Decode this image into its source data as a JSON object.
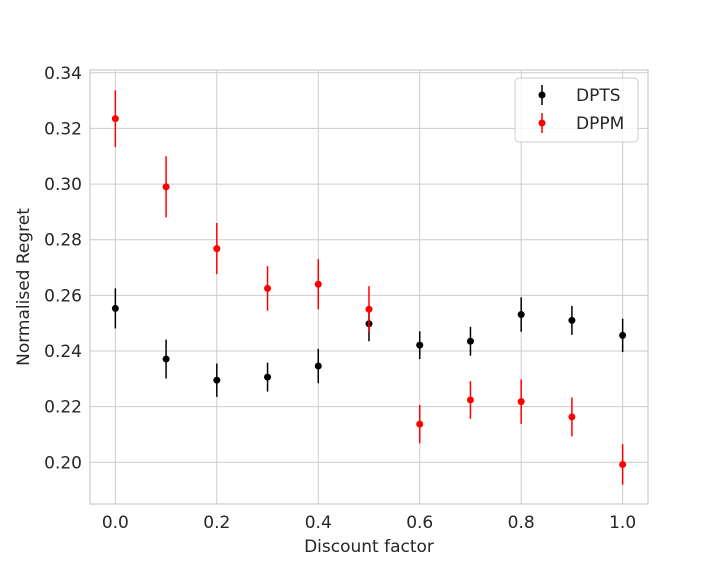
{
  "chart_data": {
    "type": "scatter",
    "title": "",
    "xlabel": "Discount factor",
    "ylabel": "Normalised Regret",
    "xlim": [
      -0.05,
      1.05
    ],
    "ylim": [
      0.185,
      0.341
    ],
    "xticks": [
      0.0,
      0.2,
      0.4,
      0.6,
      0.8,
      1.0
    ],
    "xtick_labels": [
      "0.0",
      "0.2",
      "0.4",
      "0.6",
      "0.8",
      "1.0"
    ],
    "yticks": [
      0.2,
      0.22,
      0.24,
      0.26,
      0.28,
      0.3,
      0.32,
      0.34
    ],
    "ytick_labels": [
      "0.20",
      "0.22",
      "0.24",
      "0.26",
      "0.28",
      "0.30",
      "0.32",
      "0.34"
    ],
    "grid": true,
    "legend_position": "top-right",
    "error_bars": true,
    "series": [
      {
        "name": "DPTS",
        "color": "#000000",
        "x": [
          0.0,
          0.1,
          0.2,
          0.3,
          0.4,
          0.5,
          0.6,
          0.7,
          0.8,
          0.9,
          1.0
        ],
        "y": [
          0.2553,
          0.2371,
          0.2295,
          0.2306,
          0.2346,
          0.2498,
          0.2421,
          0.2435,
          0.2531,
          0.251,
          0.2456
        ],
        "err": [
          0.0072,
          0.007,
          0.006,
          0.0052,
          0.0062,
          0.0063,
          0.005,
          0.0052,
          0.0062,
          0.0052,
          0.006
        ]
      },
      {
        "name": "DPPM",
        "color": "#ff0000",
        "x": [
          0.0,
          0.1,
          0.2,
          0.3,
          0.4,
          0.5,
          0.6,
          0.7,
          0.8,
          0.9,
          1.0
        ],
        "y": [
          0.3235,
          0.299,
          0.2768,
          0.2625,
          0.264,
          0.255,
          0.2137,
          0.2224,
          0.2218,
          0.2163,
          0.1992
        ],
        "err": [
          0.0102,
          0.011,
          0.0092,
          0.008,
          0.009,
          0.0083,
          0.0069,
          0.0068,
          0.008,
          0.007,
          0.0073
        ]
      }
    ]
  }
}
